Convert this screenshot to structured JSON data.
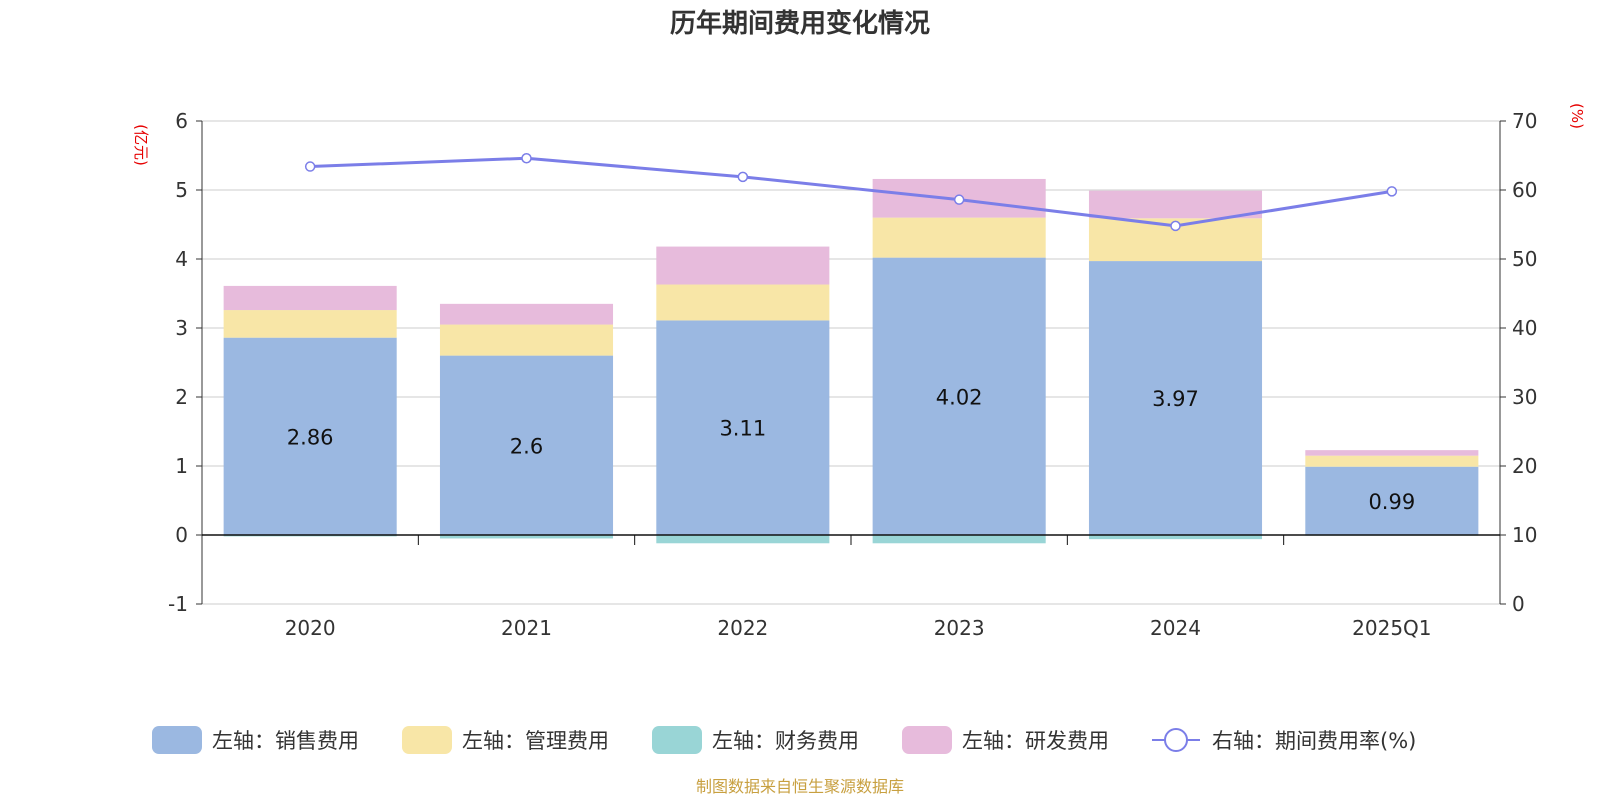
{
  "chart_data": {
    "type": "bar",
    "stacked": true,
    "title": "历年期间费用变化情况",
    "categories": [
      "2020",
      "2021",
      "2022",
      "2023",
      "2024",
      "2025Q1"
    ],
    "left_axis": {
      "unit": "(亿元)",
      "ylim": [
        -1,
        6
      ],
      "ticks": [
        -1,
        0,
        1,
        2,
        3,
        4,
        5,
        6
      ]
    },
    "right_axis": {
      "unit": "(%)",
      "ylim": [
        0,
        70
      ],
      "ticks": [
        0,
        10,
        20,
        30,
        40,
        50,
        60,
        70
      ]
    },
    "series": [
      {
        "name": "左轴：销售费用",
        "type": "bar",
        "axis": "left",
        "color": "#9bb8e1",
        "values": [
          2.86,
          2.6,
          3.11,
          4.02,
          3.97,
          0.99
        ],
        "data_labels": [
          "2.86",
          "2.6",
          "3.11",
          "4.02",
          "3.97",
          "0.99"
        ]
      },
      {
        "name": "左轴：管理费用",
        "type": "bar",
        "axis": "left",
        "color": "#f8e6a7",
        "values": [
          0.4,
          0.45,
          0.52,
          0.58,
          0.62,
          0.16
        ]
      },
      {
        "name": "左轴：财务费用",
        "type": "bar",
        "axis": "left",
        "color": "#99d5d6",
        "values": [
          -0.02,
          -0.05,
          -0.12,
          -0.12,
          -0.06,
          -0.01
        ]
      },
      {
        "name": "左轴：研发费用",
        "type": "bar",
        "axis": "left",
        "color": "#e7bbdc",
        "values": [
          0.35,
          0.3,
          0.55,
          0.56,
          0.4,
          0.08
        ]
      },
      {
        "name": "右轴：期间费用率(%)",
        "type": "line",
        "axis": "right",
        "color": "#7b7ee8",
        "values": [
          63.4,
          64.6,
          61.9,
          58.6,
          54.8,
          59.8
        ]
      }
    ],
    "legend_position": "bottom",
    "grid": true
  },
  "source": "制图数据来自恒生聚源数据库"
}
